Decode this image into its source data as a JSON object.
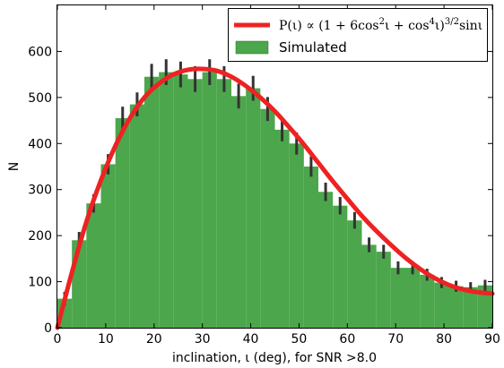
{
  "chart_data": {
    "type": "bar",
    "xlabel": "inclination, ι (deg), for SNR >8.0",
    "ylabel": "N",
    "xlim": [
      0,
      90
    ],
    "ylim": [
      0,
      700
    ],
    "xticks": [
      0,
      10,
      20,
      30,
      40,
      50,
      60,
      70,
      80,
      90
    ],
    "yticks": [
      0,
      100,
      200,
      300,
      400,
      500,
      600
    ],
    "grid": false,
    "legend_position": "top-right",
    "bin_width": 3,
    "bins_start": [
      0,
      3,
      6,
      9,
      12,
      15,
      18,
      21,
      24,
      27,
      30,
      33,
      36,
      39,
      42,
      45,
      48,
      51,
      54,
      57,
      60,
      63,
      66,
      69,
      72,
      75,
      78,
      81,
      84,
      87
    ],
    "series": [
      {
        "name": "Simulated",
        "kind": "histogram",
        "color": "#4ca64c",
        "values": [
          63,
          190,
          270,
          355,
          455,
          485,
          545,
          555,
          550,
          540,
          555,
          540,
          503,
          520,
          475,
          430,
          400,
          350,
          295,
          265,
          233,
          180,
          165,
          130,
          130,
          115,
          98,
          90,
          88,
          92
        ],
        "errors": [
          15,
          18,
          20,
          22,
          25,
          26,
          28,
          28,
          28,
          28,
          28,
          28,
          27,
          27,
          26,
          25,
          24,
          22,
          20,
          19,
          18,
          16,
          15,
          14,
          14,
          13,
          12,
          12,
          11,
          12
        ]
      },
      {
        "name": "P(ι) ∝ (1 + 6cos²ι + cos⁴ι)^{3/2} sinι",
        "kind": "line",
        "color": "#ee2222",
        "x": [
          0,
          3,
          6,
          9,
          12,
          15,
          18,
          21,
          24,
          27,
          30,
          33,
          36,
          39,
          42,
          45,
          48,
          51,
          54,
          57,
          60,
          63,
          66,
          69,
          72,
          75,
          78,
          81,
          84,
          87,
          90
        ],
        "y": [
          0,
          120,
          230,
          320,
          395,
          455,
          500,
          530,
          550,
          560,
          562,
          558,
          545,
          525,
          500,
          470,
          435,
          398,
          358,
          318,
          280,
          243,
          210,
          180,
          152,
          128,
          108,
          93,
          83,
          77,
          74
        ]
      }
    ]
  },
  "legend": {
    "line_label_prefix": "P(ι) ∝ (1 + 6cos",
    "line_label_mid1": "ι + cos",
    "line_label_mid2": "ι)",
    "line_label_suffix": "sinι",
    "sup_2": "2",
    "sup_4": "4",
    "sup_32": "3/2",
    "hist_label": "Simulated"
  },
  "colors": {
    "bar": "#4ca64c",
    "line": "#ee2222",
    "error": "#333333"
  }
}
